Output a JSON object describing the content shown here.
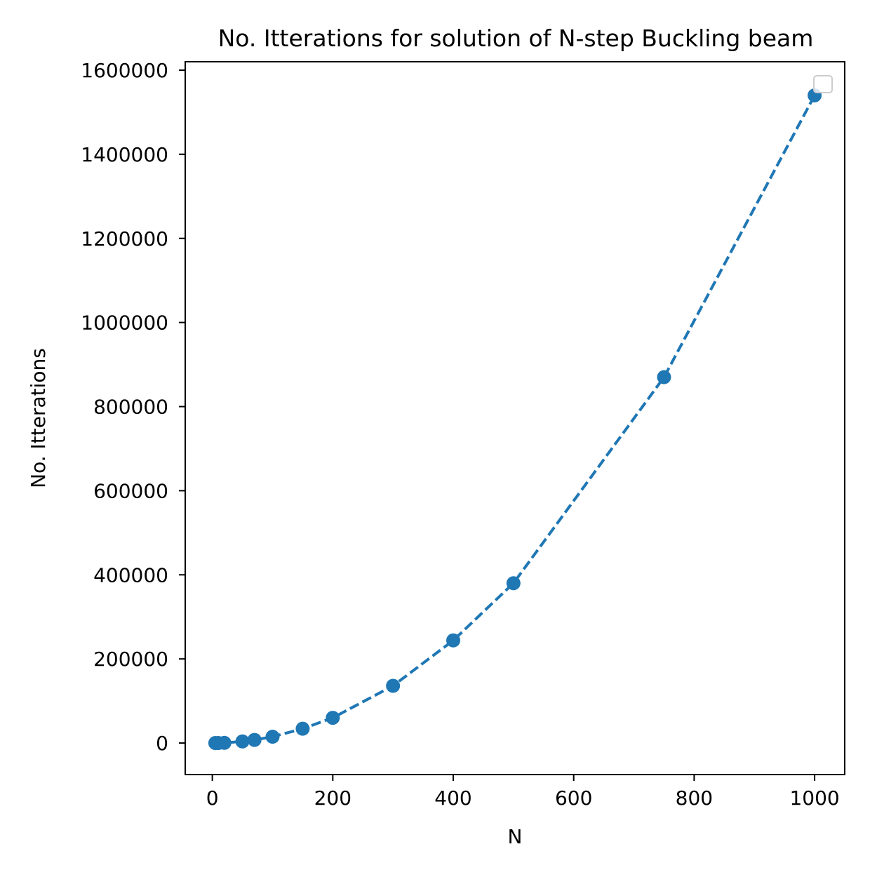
{
  "chart_data": {
    "type": "line",
    "title": "No. Itterations for solution of N-step Buckling beam",
    "xlabel": "N",
    "ylabel": "No. Itterations",
    "xlim": [
      -45,
      1050
    ],
    "ylim": [
      -75000,
      1620000
    ],
    "xticks": [
      0,
      200,
      400,
      600,
      800,
      1000
    ],
    "yticks": [
      0,
      200000,
      400000,
      600000,
      800000,
      1000000,
      1200000,
      1400000,
      1600000
    ],
    "grid": false,
    "legend": "top-right, empty",
    "series": [
      {
        "color": "#1f77b4",
        "line_style": "dashed",
        "marker": "circle",
        "x": [
          5,
          10,
          20,
          50,
          70,
          100,
          150,
          200,
          300,
          400,
          500,
          750,
          1000
        ],
        "y": [
          0,
          100,
          400,
          3800,
          7400,
          15000,
          34000,
          60000,
          136000,
          244000,
          380000,
          870000,
          1540000
        ]
      }
    ]
  }
}
